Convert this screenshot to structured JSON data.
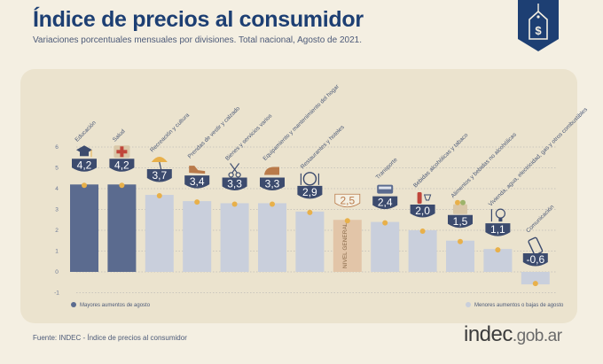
{
  "header": {
    "title": "Índice de precios al consumidor",
    "subtitle": "Variaciones porcentuales mensuales por divisiones. Total nacional, Agosto de 2021."
  },
  "footer": {
    "source": "Fuente: INDEC - Índice de precios al consumidor",
    "brand_main": "indec",
    "brand_suffix": ".gob.ar"
  },
  "colors": {
    "background": "#f4efe2",
    "panel": "#ebe3ce",
    "dark_bar": "#5b6b8f",
    "light_bar": "#c9cfdc",
    "general_bar": "#e2c5a8",
    "value_pill": "#3c4b6e",
    "dot": "#e8b04a",
    "navy": "#1d3f73"
  },
  "chart_data": {
    "type": "bar",
    "title": "Índice de precios al consumidor",
    "subtitle": "Variaciones porcentuales mensuales por divisiones. Total nacional, Agosto de 2021.",
    "categories": [
      "Educación",
      "Salud",
      "Recreación y cultura",
      "Prendas de vestir y calzado",
      "Bienes y servicios varios",
      "Equipamiento y mantenimiento del hogar",
      "Restaurantes y hoteles",
      "NIVEL GENERAL",
      "Transporte",
      "Bebidas alcohólicas y tabaco",
      "Alimentos y bebidas no alcohólicas",
      "Vivienda, agua, electricidad, gas y otros combustibles",
      "Comunicación"
    ],
    "values": [
      4.2,
      4.2,
      3.7,
      3.4,
      3.3,
      3.3,
      2.9,
      2.5,
      2.4,
      2.0,
      1.5,
      1.1,
      -0.6
    ],
    "value_labels": [
      "4,2",
      "4,2",
      "3,7",
      "3,4",
      "3,3",
      "3,3",
      "2,9",
      "2,5",
      "2,4",
      "2,0",
      "1,5",
      "1,1",
      "-0,6"
    ],
    "groups": [
      "mayores",
      "mayores",
      "menores",
      "menores",
      "menores",
      "menores",
      "menores",
      "general",
      "menores",
      "menores",
      "menores",
      "menores",
      "menores"
    ],
    "icons": [
      "graduation-cap-icon",
      "medical-cross-icon",
      "beach-umbrella-icon",
      "shoe-icon",
      "scissors-icon",
      "iron-icon",
      "dish-icon",
      "",
      "bus-icon",
      "wine-bottle-icon",
      "grocery-bag-icon",
      "light-bulb-icon",
      "smartphone-icon"
    ],
    "y_ticks": [
      -1,
      0,
      1,
      2,
      3,
      4,
      5,
      6
    ],
    "ylim": [
      -1,
      6
    ],
    "legend": [
      {
        "label": "Mayores aumentos de agosto",
        "group": "mayores",
        "position": "bottom-left"
      },
      {
        "label": "Menores aumentos o bajas de agosto",
        "group": "menores",
        "position": "bottom-right"
      }
    ],
    "grid": true
  }
}
